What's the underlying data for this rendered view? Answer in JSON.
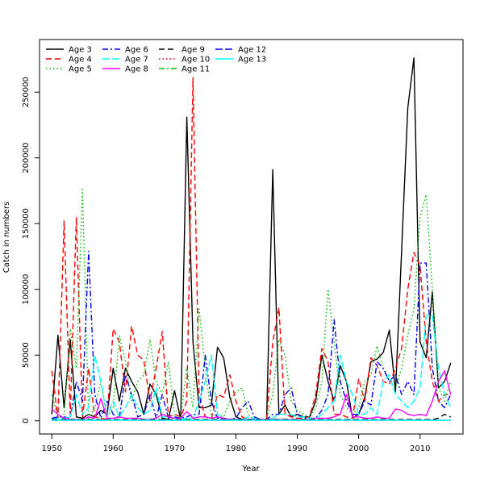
{
  "chart_data": {
    "type": "line",
    "title": "",
    "xlabel": "Year",
    "ylabel": "Catch in numbers",
    "xlim": [
      1948,
      2017
    ],
    "ylim": [
      -10000,
      290000
    ],
    "x_ticks": [
      1950,
      1960,
      1970,
      1980,
      1990,
      2000,
      2010
    ],
    "y_ticks": [
      0,
      50000,
      100000,
      150000,
      200000,
      250000
    ],
    "grid": false,
    "legend_position": "top-left",
    "x": [
      1950,
      1951,
      1952,
      1953,
      1954,
      1955,
      1956,
      1957,
      1958,
      1959,
      1960,
      1961,
      1962,
      1963,
      1964,
      1965,
      1966,
      1967,
      1968,
      1969,
      1970,
      1971,
      1972,
      1973,
      1974,
      1975,
      1976,
      1977,
      1978,
      1979,
      1980,
      1981,
      1982,
      1983,
      1984,
      1985,
      1986,
      1987,
      1988,
      1989,
      1990,
      1991,
      1992,
      1993,
      1994,
      1995,
      1996,
      1997,
      1998,
      1999,
      2000,
      2001,
      2002,
      2003,
      2004,
      2005,
      2006,
      2007,
      2008,
      2009,
      2010,
      2011,
      2012,
      2013,
      2014,
      2015
    ],
    "series": [
      {
        "name": "Age 3",
        "color": "#000000",
        "dash": "solid",
        "values": [
          5000,
          65000,
          10000,
          62000,
          3000,
          2000,
          5000,
          3000,
          8000,
          5000,
          40000,
          15000,
          40000,
          30000,
          22000,
          5000,
          28000,
          20000,
          2000,
          1000,
          23000,
          1000,
          231000,
          60000,
          10000,
          10000,
          12000,
          56000,
          48000,
          18000,
          3000,
          1000,
          1000,
          1000,
          1000,
          1000,
          191000,
          5000,
          12000,
          3000,
          5000,
          3000,
          3000,
          15000,
          50000,
          30000,
          15000,
          42000,
          30000,
          2000,
          5000,
          18000,
          45000,
          47000,
          52000,
          69000,
          22000,
          130000,
          238000,
          276000,
          60000,
          48000,
          98000,
          25000,
          30000,
          44000
        ]
      },
      {
        "name": "Age 4",
        "color": "#ff0000",
        "dash": "7,4",
        "values": [
          38000,
          2000,
          152000,
          5000,
          155000,
          3000,
          40000,
          3000,
          2000,
          1000,
          70000,
          60000,
          22000,
          72000,
          50000,
          46000,
          15000,
          40000,
          68000,
          3000,
          5000,
          3000,
          15000,
          261000,
          20000,
          3000,
          2000,
          20000,
          18000,
          35000,
          15000,
          3000,
          1000,
          1000,
          1000,
          1000,
          60000,
          86000,
          5000,
          3000,
          2000,
          2000,
          3000,
          20000,
          55000,
          45000,
          5000,
          5000,
          3000,
          2000,
          32000,
          15000,
          48000,
          42000,
          30000,
          28000,
          40000,
          55000,
          100000,
          128000,
          118000,
          60000,
          30000,
          15000,
          20000,
          20000
        ]
      },
      {
        "name": "Age 5",
        "color": "#00bb00",
        "dash": "1.5,3",
        "values": [
          20000,
          3000,
          5000,
          70000,
          40000,
          176000,
          2000,
          10000,
          30000,
          3000,
          10000,
          65000,
          45000,
          15000,
          30000,
          35000,
          62000,
          30000,
          20000,
          45000,
          3000,
          3000,
          40000,
          10000,
          85000,
          40000,
          3000,
          5000,
          3000,
          15000,
          22000,
          25000,
          5000,
          1000,
          1000,
          1000,
          20000,
          62000,
          50000,
          15000,
          8000,
          5000,
          2000,
          10000,
          30000,
          100000,
          60000,
          20000,
          10000,
          5000,
          10000,
          30000,
          35000,
          57000,
          40000,
          30000,
          25000,
          40000,
          65000,
          85000,
          155000,
          172000,
          100000,
          25000,
          15000,
          30000
        ]
      },
      {
        "name": "Age 6",
        "color": "#0000ee",
        "dash": "7,3,2,3",
        "values": [
          2000,
          3000,
          3000,
          2000,
          30000,
          15000,
          129000,
          20000,
          2000,
          15000,
          5000,
          2000,
          35000,
          20000,
          3000,
          5000,
          20000,
          2000,
          20000,
          2000,
          3000,
          2000,
          3000,
          5000,
          5000,
          50000,
          15000,
          2000,
          2000,
          1000,
          2000,
          10000,
          15000,
          3000,
          1000,
          1000,
          5000,
          5000,
          20000,
          25000,
          5000,
          2000,
          2000,
          2000,
          8000,
          20000,
          77000,
          30000,
          15000,
          5000,
          5000,
          15000,
          12000,
          45000,
          40000,
          30000,
          35000,
          20000,
          30000,
          20000,
          120000,
          120000,
          40000,
          15000,
          10000,
          20000
        ]
      },
      {
        "name": "Age 7",
        "color": "#00ffff",
        "dash": "9,3",
        "values": [
          1000,
          2000,
          2000,
          3000,
          20000,
          5000,
          10000,
          50000,
          30000,
          3000,
          15000,
          3000,
          10000,
          20000,
          10000,
          5000,
          8000,
          25000,
          3000,
          3000,
          2000,
          1000,
          2000,
          2000,
          15000,
          30000,
          50000,
          5000,
          2000,
          1000,
          1000,
          1000,
          3000,
          2000,
          1000,
          1000,
          2000,
          5000,
          5000,
          5000,
          3000,
          3000,
          2000,
          2000,
          5000,
          10000,
          15000,
          50000,
          30000,
          20000,
          5000,
          5000,
          10000,
          5000,
          30000,
          35000,
          20000,
          15000,
          10000,
          15000,
          25000,
          80000,
          80000,
          40000,
          20000,
          10000
        ]
      },
      {
        "name": "Age 8",
        "color": "#ff00ff",
        "dash": "solid",
        "values": [
          9000,
          5000,
          2000,
          1000,
          1000,
          1000,
          3000,
          2000,
          17000,
          2000,
          2000,
          3000,
          2000,
          2000,
          2000,
          1000,
          1000,
          2000,
          5000,
          3000,
          2000,
          2000,
          7000,
          2000,
          3000,
          3000,
          2000,
          3000,
          2000,
          1000,
          1000,
          1000,
          1000,
          1000,
          1000,
          1000,
          1000,
          1000,
          1000,
          1000,
          1000,
          1000,
          1000,
          2000,
          2000,
          2000,
          3000,
          5000,
          20000,
          3000,
          3000,
          2000,
          2000,
          3000,
          2000,
          2000,
          9000,
          8000,
          5000,
          4000,
          5000,
          4000,
          15000,
          30000,
          38000,
          20000
        ]
      },
      {
        "name": "Age 9",
        "color": "#000000",
        "dash": "7,4",
        "values": [
          1000,
          1000,
          1000,
          1000,
          1000,
          1000,
          1000,
          1000,
          1000,
          1000,
          1000,
          1000,
          1000,
          1000,
          1000,
          1000,
          1000,
          1000,
          1000,
          1000,
          1000,
          1000,
          1000,
          1000,
          1000,
          1000,
          1000,
          1000,
          1000,
          1000,
          1000,
          1000,
          1000,
          1000,
          1000,
          1000,
          1000,
          1000,
          1000,
          1000,
          1000,
          1000,
          1000,
          1000,
          1000,
          1000,
          1000,
          1000,
          1000,
          1000,
          1000,
          1000,
          1000,
          1000,
          1000,
          1000,
          1000,
          1000,
          1000,
          1000,
          1000,
          1000,
          1000,
          2000,
          5000,
          3000
        ]
      },
      {
        "name": "Age 10",
        "color": "#ff0000",
        "dash": "1.5,3",
        "values": [
          500,
          500,
          500,
          500,
          500,
          500,
          500,
          500,
          500,
          500,
          500,
          500,
          500,
          500,
          500,
          500,
          500,
          500,
          500,
          500,
          500,
          500,
          500,
          500,
          500,
          500,
          500,
          500,
          500,
          500,
          500,
          500,
          500,
          500,
          500,
          500,
          500,
          500,
          500,
          500,
          500,
          500,
          500,
          500,
          500,
          500,
          500,
          500,
          500,
          500,
          500,
          500,
          500,
          500,
          500,
          500,
          500,
          500,
          500,
          500,
          500,
          500,
          500,
          500,
          500,
          500
        ]
      },
      {
        "name": "Age 11",
        "color": "#00bb00",
        "dash": "7,3,2,3",
        "values": [
          500,
          500,
          500,
          500,
          500,
          500,
          500,
          500,
          500,
          500,
          500,
          500,
          500,
          500,
          500,
          500,
          500,
          500,
          500,
          500,
          500,
          500,
          500,
          500,
          500,
          500,
          500,
          500,
          500,
          500,
          500,
          500,
          500,
          500,
          500,
          500,
          500,
          500,
          500,
          500,
          500,
          500,
          500,
          500,
          500,
          500,
          500,
          500,
          500,
          500,
          500,
          500,
          500,
          500,
          500,
          500,
          500,
          500,
          500,
          500,
          500,
          500,
          500,
          500,
          500,
          500
        ]
      },
      {
        "name": "Age 12",
        "color": "#0000ee",
        "dash": "9,3",
        "values": [
          500,
          500,
          500,
          500,
          500,
          500,
          500,
          500,
          500,
          500,
          500,
          500,
          500,
          500,
          500,
          500,
          500,
          500,
          500,
          500,
          500,
          500,
          500,
          500,
          500,
          500,
          500,
          500,
          500,
          500,
          500,
          500,
          500,
          500,
          500,
          500,
          500,
          500,
          500,
          500,
          500,
          500,
          500,
          500,
          500,
          500,
          500,
          500,
          500,
          500,
          500,
          500,
          500,
          500,
          500,
          500,
          500,
          500,
          500,
          500,
          500,
          500,
          500,
          500,
          500,
          500
        ]
      },
      {
        "name": "Age 13",
        "color": "#00ffff",
        "dash": "solid",
        "values": [
          500,
          500,
          500,
          500,
          500,
          500,
          500,
          500,
          500,
          500,
          500,
          500,
          500,
          500,
          500,
          500,
          500,
          500,
          500,
          500,
          500,
          500,
          500,
          500,
          500,
          500,
          500,
          500,
          500,
          500,
          500,
          500,
          500,
          500,
          500,
          500,
          500,
          500,
          500,
          500,
          500,
          500,
          500,
          500,
          500,
          500,
          500,
          500,
          500,
          500,
          500,
          500,
          500,
          500,
          500,
          500,
          500,
          500,
          500,
          500,
          500,
          500,
          500,
          500,
          500,
          500
        ]
      }
    ]
  }
}
